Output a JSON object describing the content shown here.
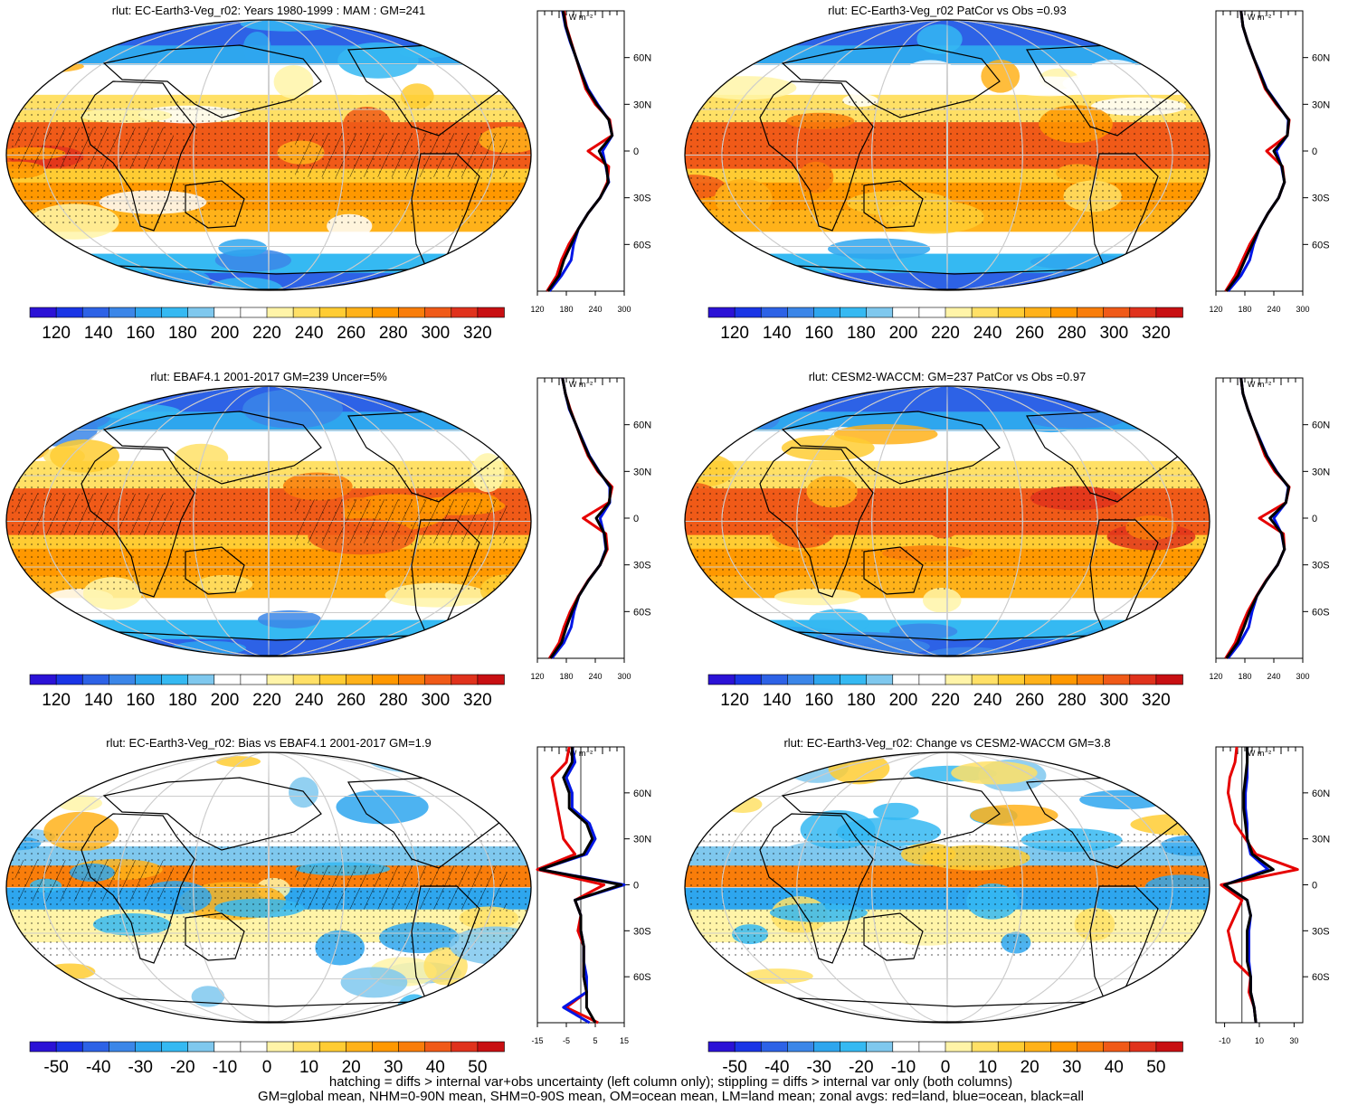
{
  "panels": [
    {
      "id": "p1",
      "title": "rlut: EC-Earth3-Veg_r02: Years 1980-1999 : MAM : GM=241",
      "kind": "abs",
      "colorbar_labels": [
        "120",
        "140",
        "160",
        "180",
        "200",
        "220",
        "240",
        "260",
        "280",
        "300",
        "320"
      ],
      "zonal": {
        "unit": "W m⁻²",
        "xticks": [
          "120",
          "180",
          "240",
          "300"
        ],
        "xrange": [
          120,
          300
        ],
        "yticks": [
          "60N",
          "30N",
          "0",
          "30S",
          "60S"
        ]
      }
    },
    {
      "id": "p2",
      "title": "rlut: EC-Earth3-Veg_r02 PatCor vs Obs =0.93",
      "kind": "abs",
      "colorbar_labels": [
        "120",
        "140",
        "160",
        "180",
        "200",
        "220",
        "240",
        "260",
        "280",
        "300",
        "320"
      ],
      "zonal": {
        "unit": "W m⁻²",
        "xticks": [
          "120",
          "180",
          "240",
          "300"
        ],
        "xrange": [
          120,
          300
        ],
        "yticks": [
          "60N",
          "30N",
          "0",
          "30S",
          "60S"
        ]
      }
    },
    {
      "id": "p3",
      "title": "rlut: EBAF4.1 2001-2017 GM=239 Uncer=5%",
      "kind": "abs",
      "colorbar_labels": [
        "120",
        "140",
        "160",
        "180",
        "200",
        "220",
        "240",
        "260",
        "280",
        "300",
        "320"
      ],
      "zonal": {
        "unit": "W m⁻²",
        "xticks": [
          "120",
          "180",
          "240",
          "300"
        ],
        "xrange": [
          120,
          300
        ],
        "yticks": [
          "60N",
          "30N",
          "0",
          "30S",
          "60S"
        ]
      }
    },
    {
      "id": "p4",
      "title": "rlut: CESM2-WACCM: GM=237 PatCor vs Obs =0.97",
      "kind": "abs",
      "colorbar_labels": [
        "120",
        "140",
        "160",
        "180",
        "200",
        "220",
        "240",
        "260",
        "280",
        "300",
        "320"
      ],
      "zonal": {
        "unit": "W m⁻²",
        "xticks": [
          "120",
          "180",
          "240",
          "300"
        ],
        "xrange": [
          120,
          300
        ],
        "yticks": [
          "60N",
          "30N",
          "0",
          "30S",
          "60S"
        ]
      }
    },
    {
      "id": "p5",
      "title": "rlut: EC-Earth3-Veg_r02: Bias vs EBAF4.1 2001-2017 GM=1.9",
      "kind": "diff",
      "colorbar_labels": [
        "-50",
        "-40",
        "-30",
        "-20",
        "-10",
        "0",
        "10",
        "20",
        "30",
        "40",
        "50"
      ],
      "zonal": {
        "unit": "W m⁻²",
        "xticks": [
          "-15",
          "-5",
          "5",
          "15"
        ],
        "xrange": [
          -15,
          15
        ],
        "yticks": [
          "60N",
          "30N",
          "0",
          "30S",
          "60S"
        ]
      }
    },
    {
      "id": "p6",
      "title": "rlut: EC-Earth3-Veg_r02: Change vs CESM2-WACCM GM=3.8",
      "kind": "diff",
      "colorbar_labels": [
        "-50",
        "-40",
        "-30",
        "-20",
        "-10",
        "0",
        "10",
        "20",
        "30",
        "40",
        "50"
      ],
      "zonal": {
        "unit": "W m⁻²",
        "xticks": [
          "-10",
          "10",
          "30"
        ],
        "xrange": [
          -15,
          35
        ],
        "yticks": [
          "60N",
          "30N",
          "0",
          "30S",
          "60S"
        ]
      }
    }
  ],
  "colors": {
    "abs_scale": [
      "#2b12d6",
      "#1a35e6",
      "#2d62e6",
      "#3b86e8",
      "#2ea6ee",
      "#35b9f2",
      "#7fc8ee",
      "#ffffff",
      "#ffffff",
      "#fff4a8",
      "#ffe066",
      "#ffcc33",
      "#ffb21a",
      "#ff9800",
      "#f97d0a",
      "#f05a18",
      "#e0321c",
      "#c80f12"
    ],
    "diff_scale": [
      "#2b12d6",
      "#1a35e6",
      "#2d62e6",
      "#3b86e8",
      "#2ea6ee",
      "#35b9f2",
      "#7fc8ee",
      "#ffffff",
      "#ffffff",
      "#fff4a8",
      "#ffe066",
      "#ffcc33",
      "#ffb21a",
      "#ff9800",
      "#f97d0a",
      "#f05a18",
      "#e0321c",
      "#c80f12"
    ],
    "land": "#e60000",
    "ocean": "#0016e6",
    "all": "#000000"
  },
  "chart_data": [
    {
      "type": "line",
      "panel": "p1",
      "xlabel": "W m⁻²",
      "xlim": [
        120,
        300
      ],
      "series": [
        {
          "name": "red=land",
          "lat": [
            -90,
            -80,
            -70,
            -60,
            -50,
            -40,
            -30,
            -20,
            -10,
            0,
            10,
            20,
            30,
            40,
            50,
            60,
            70,
            80,
            90
          ],
          "values": [
            140,
            160,
            170,
            185,
            205,
            225,
            250,
            265,
            268,
            225,
            275,
            270,
            240,
            220,
            210,
            200,
            190,
            180,
            175
          ]
        },
        {
          "name": "blue=ocean",
          "lat": [
            -90,
            -80,
            -70,
            -60,
            -50,
            -40,
            -30,
            -20,
            -10,
            0,
            10,
            20,
            30,
            40,
            50,
            60,
            70,
            80,
            90
          ],
          "values": [
            145,
            170,
            190,
            195,
            205,
            225,
            250,
            268,
            262,
            255,
            275,
            268,
            245,
            225,
            212,
            200,
            188,
            178,
            172
          ]
        },
        {
          "name": "black=all",
          "lat": [
            -90,
            -80,
            -70,
            -60,
            -50,
            -40,
            -30,
            -20,
            -10,
            0,
            10,
            20,
            30,
            40,
            50,
            60,
            70,
            80,
            90
          ],
          "values": [
            142,
            165,
            175,
            190,
            205,
            225,
            250,
            267,
            263,
            248,
            275,
            268,
            243,
            223,
            211,
            200,
            189,
            179,
            173
          ]
        }
      ]
    },
    {
      "type": "line",
      "panel": "p2",
      "xlabel": "W m⁻²",
      "xlim": [
        120,
        300
      ],
      "series": [
        {
          "name": "red=land",
          "lat": [
            -90,
            -80,
            -70,
            -60,
            -50,
            -40,
            -30,
            -20,
            -10,
            0,
            10,
            20,
            30,
            40,
            50,
            60,
            70,
            80,
            90
          ],
          "values": [
            140,
            160,
            175,
            190,
            210,
            228,
            250,
            262,
            258,
            225,
            268,
            272,
            245,
            222,
            210,
            198,
            186,
            176,
            172
          ]
        },
        {
          "name": "blue=ocean",
          "lat": [
            -90,
            -80,
            -70,
            -60,
            -50,
            -40,
            -30,
            -20,
            -10,
            0,
            10,
            20,
            30,
            40,
            50,
            60,
            70,
            80,
            90
          ],
          "values": [
            145,
            172,
            190,
            198,
            210,
            228,
            250,
            262,
            256,
            245,
            268,
            270,
            248,
            225,
            212,
            198,
            186,
            176,
            172
          ]
        },
        {
          "name": "black=all",
          "lat": [
            -90,
            -80,
            -70,
            -60,
            -50,
            -40,
            -30,
            -20,
            -10,
            0,
            10,
            20,
            30,
            40,
            50,
            60,
            70,
            80,
            90
          ],
          "values": [
            142,
            166,
            180,
            195,
            210,
            228,
            250,
            262,
            257,
            240,
            268,
            271,
            247,
            224,
            211,
            198,
            186,
            176,
            172
          ]
        }
      ]
    },
    {
      "type": "line",
      "panel": "p3",
      "xlabel": "W m⁻²",
      "xlim": [
        120,
        300
      ],
      "series": [
        {
          "name": "red=land",
          "lat": [
            -90,
            -80,
            -70,
            -60,
            -50,
            -40,
            -30,
            -20,
            -10,
            0,
            10,
            20,
            30,
            40,
            50,
            60,
            70,
            80,
            90
          ],
          "values": [
            145,
            165,
            175,
            188,
            205,
            225,
            250,
            265,
            262,
            215,
            268,
            275,
            245,
            225,
            212,
            200,
            188,
            178,
            172
          ]
        },
        {
          "name": "blue=ocean",
          "lat": [
            -90,
            -80,
            -70,
            -60,
            -50,
            -40,
            -30,
            -20,
            -10,
            0,
            10,
            20,
            30,
            40,
            50,
            60,
            70,
            80,
            90
          ],
          "values": [
            150,
            175,
            190,
            196,
            206,
            226,
            250,
            262,
            258,
            250,
            270,
            270,
            248,
            228,
            214,
            200,
            186,
            178,
            172
          ]
        },
        {
          "name": "black=all",
          "lat": [
            -90,
            -80,
            -70,
            -60,
            -50,
            -40,
            -30,
            -20,
            -10,
            0,
            10,
            20,
            30,
            40,
            50,
            60,
            70,
            80,
            90
          ],
          "values": [
            147,
            170,
            180,
            192,
            206,
            226,
            250,
            263,
            259,
            242,
            269,
            272,
            247,
            227,
            213,
            200,
            187,
            178,
            172
          ]
        }
      ]
    },
    {
      "type": "line",
      "panel": "p4",
      "xlabel": "W m⁻²",
      "xlim": [
        120,
        300
      ],
      "series": [
        {
          "name": "red=land",
          "lat": [
            -90,
            -80,
            -70,
            -60,
            -50,
            -40,
            -30,
            -20,
            -10,
            0,
            10,
            20,
            30,
            40,
            50,
            60,
            70,
            80,
            90
          ],
          "values": [
            140,
            160,
            172,
            186,
            204,
            224,
            248,
            262,
            260,
            210,
            265,
            272,
            242,
            222,
            210,
            198,
            186,
            176,
            172
          ]
        },
        {
          "name": "blue=ocean",
          "lat": [
            -90,
            -80,
            -70,
            -60,
            -50,
            -40,
            -30,
            -20,
            -10,
            0,
            10,
            20,
            30,
            40,
            50,
            60,
            70,
            80,
            90
          ],
          "values": [
            145,
            170,
            188,
            195,
            205,
            225,
            248,
            262,
            256,
            240,
            265,
            270,
            246,
            226,
            212,
            198,
            186,
            176,
            172
          ]
        },
        {
          "name": "black=all",
          "lat": [
            -90,
            -80,
            -70,
            -60,
            -50,
            -40,
            -30,
            -20,
            -10,
            0,
            10,
            20,
            30,
            40,
            50,
            60,
            70,
            80,
            90
          ],
          "values": [
            142,
            165,
            178,
            190,
            205,
            225,
            248,
            262,
            257,
            232,
            265,
            271,
            245,
            225,
            211,
            198,
            186,
            176,
            172
          ]
        }
      ]
    },
    {
      "type": "line",
      "panel": "p5",
      "xlabel": "W m⁻²",
      "xlim": [
        -15,
        15
      ],
      "series": [
        {
          "name": "red=land",
          "lat": [
            -90,
            -80,
            -70,
            -60,
            -50,
            -40,
            -30,
            -20,
            -10,
            0,
            10,
            20,
            30,
            40,
            50,
            60,
            70,
            80,
            90
          ],
          "values": [
            6,
            -5,
            2,
            1,
            1,
            1,
            -1,
            0,
            -2,
            8,
            -15,
            -2,
            -6,
            -7,
            -8,
            -9,
            -10,
            -5,
            -4
          ]
        },
        {
          "name": "blue=ocean",
          "lat": [
            -90,
            -80,
            -70,
            -60,
            -50,
            -40,
            -30,
            -20,
            -10,
            0,
            10,
            20,
            30,
            40,
            50,
            60,
            70,
            80,
            90
          ],
          "values": [
            3,
            -6,
            2,
            2,
            1,
            1,
            0,
            0,
            -2,
            15,
            -14,
            2,
            5,
            3,
            -3,
            -3,
            -5,
            -2,
            -3
          ]
        },
        {
          "name": "black=all",
          "lat": [
            -90,
            -80,
            -70,
            -60,
            -50,
            -40,
            -30,
            -20,
            -10,
            0,
            10,
            20,
            30,
            40,
            50,
            60,
            70,
            80,
            90
          ],
          "values": [
            5,
            2,
            2,
            1,
            1,
            1,
            0,
            0,
            -2,
            14,
            -14,
            1,
            4,
            2,
            -4,
            -4,
            -6,
            -3,
            -3
          ]
        }
      ]
    },
    {
      "type": "line",
      "panel": "p6",
      "xlabel": "W m⁻²",
      "xlim": [
        -15,
        35
      ],
      "series": [
        {
          "name": "red=land",
          "lat": [
            -90,
            -80,
            -70,
            -60,
            -50,
            -40,
            -30,
            -20,
            -10,
            0,
            10,
            20,
            30,
            40,
            50,
            60,
            70,
            80,
            90
          ],
          "values": [
            8,
            7,
            4,
            5,
            -4,
            -6,
            -8,
            -4,
            0,
            -12,
            32,
            8,
            2,
            -4,
            -6,
            -8,
            -7,
            -4,
            -3
          ]
        },
        {
          "name": "blue=ocean",
          "lat": [
            -90,
            -80,
            -70,
            -60,
            -50,
            -40,
            -30,
            -20,
            -10,
            0,
            10,
            20,
            30,
            40,
            50,
            60,
            70,
            80,
            90
          ],
          "values": [
            8,
            7,
            5,
            5,
            4,
            4,
            4,
            5,
            3,
            -10,
            15,
            5,
            3,
            3,
            2,
            2,
            3,
            3,
            3
          ]
        },
        {
          "name": "black=all",
          "lat": [
            -90,
            -80,
            -70,
            -60,
            -50,
            -40,
            -30,
            -20,
            -10,
            0,
            10,
            20,
            30,
            40,
            50,
            60,
            70,
            80,
            90
          ],
          "values": [
            8,
            7,
            5,
            5,
            3,
            3,
            3,
            5,
            3,
            -10,
            18,
            6,
            3,
            2,
            1,
            1,
            2,
            3,
            3
          ]
        }
      ]
    }
  ],
  "footer": {
    "line1": "hatching = diffs > internal var+obs uncertainty (left column only); stippling = diffs > internal var only (both columns)",
    "line2": "GM=global mean, NHM=0-90N mean, SHM=0-90S mean, OM=ocean mean, LM=land mean; zonal avgs: red=land, blue=ocean, black=all"
  }
}
